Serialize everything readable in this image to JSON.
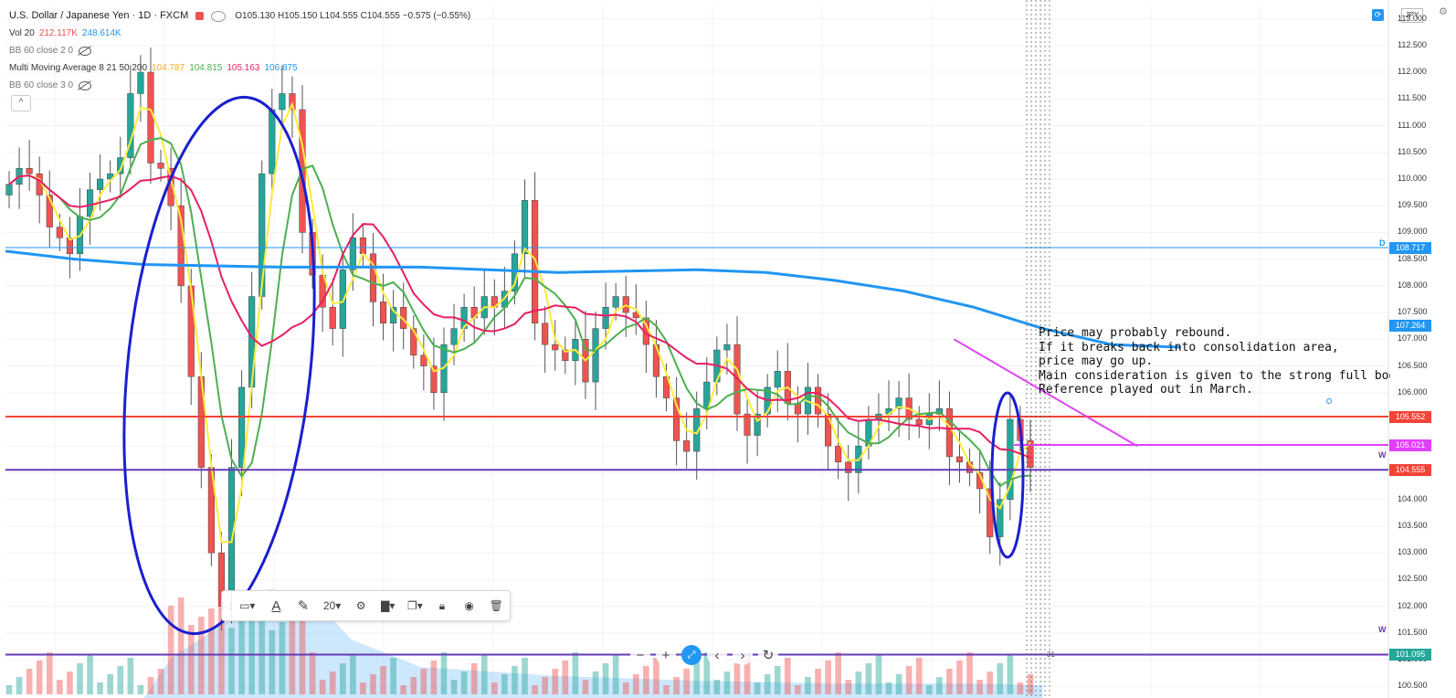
{
  "header": {
    "symbol": "U.S. Dollar / Japanese Yen · 1D · FXCM",
    "ohlc": "O105.130 H105.150 L104.555 C104.555 −0.575 (−0.55%)"
  },
  "indicators": {
    "vol_label": "Vol 20",
    "vol_v1": "212.117K",
    "vol_v2": "248.614K",
    "bb1": "BB 60 close 2 0",
    "mma_label": "Multi Moving Average 8 21 50 200",
    "mma_v1": "104.787",
    "mma_v2": "104.815",
    "mma_v3": "105.163",
    "mma_v4": "106.875",
    "bb2": "BB 60 close 3 0",
    "collapse": "^"
  },
  "toolbar": {
    "font_size": "20",
    "text_icon": "A"
  },
  "zoom": {
    "minus": "−",
    "plus": "+",
    "prev": "‹",
    "next": "›"
  },
  "axis": {
    "currency": "JPY",
    "ticks": [
      "113.000",
      "112.500",
      "112.000",
      "111.500",
      "111.000",
      "110.500",
      "110.000",
      "109.500",
      "109.000",
      "108.500",
      "108.000",
      "107.500",
      "107.000",
      "106.500",
      "106.000",
      "105.500",
      "105.000",
      "104.500",
      "104.000",
      "103.500",
      "103.000",
      "102.500",
      "102.000",
      "101.500",
      "101.000",
      "100.500"
    ],
    "tags": [
      {
        "label": "108.717",
        "value": 108.717,
        "color": "#2196f3"
      },
      {
        "label": "107.264",
        "value": 107.264,
        "color": "#2196f3"
      },
      {
        "label": "105.552",
        "value": 105.552,
        "color": "#f44336"
      },
      {
        "label": "105.021",
        "value": 105.021,
        "color": "#e040fb"
      },
      {
        "label": "104.555",
        "value": 104.555,
        "color": "#f44336"
      },
      {
        "label": "101.095",
        "value": 101.095,
        "color": "#26a69a"
      }
    ]
  },
  "annotation": {
    "lines": [
      "Price may probably rebound.",
      "If it breaks back into consolidation area,",
      "price may go up.",
      "Main consideration is given to the strong full body bull",
      "Reference played out in March."
    ]
  },
  "labels": {
    "w1": "W",
    "w2": "W",
    "d": "D"
  },
  "time_axis": {
    "label": "31"
  },
  "colors": {
    "up": "#26a69a",
    "down": "#ef5350",
    "ma8": "#ffeb3b",
    "ma21": "#4caf50",
    "ma50": "#e91e63",
    "ma200": "#2196f3"
  },
  "chart_data": {
    "type": "candlestick",
    "ylim": [
      100.5,
      113.2
    ],
    "horizontal_levels": [
      {
        "value": 108.717,
        "color": "#2196f3"
      },
      {
        "value": 105.552,
        "color": "#f44336"
      },
      {
        "value": 104.555,
        "color": "#673ab7"
      },
      {
        "value": 101.095,
        "color": "#673ab7"
      },
      {
        "value": 105.021,
        "color": "#e040fb"
      }
    ],
    "trendline": {
      "from": [
        0.6,
        107.0
      ],
      "to": [
        0.95,
        105.0
      ],
      "color": "#e040fb"
    },
    "ma200_path": [
      [
        0,
        108.65
      ],
      [
        0.05,
        108.5
      ],
      [
        0.1,
        108.4
      ],
      [
        0.2,
        108.35
      ],
      [
        0.3,
        108.35
      ],
      [
        0.4,
        108.25
      ],
      [
        0.5,
        108.3
      ],
      [
        0.55,
        108.25
      ],
      [
        0.6,
        108.1
      ],
      [
        0.65,
        107.9
      ],
      [
        0.7,
        107.6
      ],
      [
        0.75,
        107.2
      ],
      [
        0.8,
        106.9
      ],
      [
        0.85,
        106.85
      ]
    ],
    "candles_close": [
      109.9,
      110.2,
      110.1,
      109.7,
      109.1,
      108.9,
      108.6,
      109.3,
      109.8,
      110.0,
      110.1,
      110.4,
      111.6,
      112.0,
      110.3,
      110.2,
      109.5,
      108.0,
      106.3,
      104.6,
      103.0,
      102.0,
      104.6,
      106.1,
      107.8,
      110.1,
      111.3,
      111.6,
      111.3,
      109.0,
      108.2,
      107.6,
      107.2,
      108.3,
      108.9,
      108.6,
      107.7,
      107.3,
      107.6,
      107.2,
      106.7,
      106.5,
      106.0,
      106.9,
      107.2,
      107.6,
      107.4,
      107.8,
      107.6,
      107.9,
      108.6,
      109.6,
      107.3,
      106.9,
      106.8,
      106.6,
      107.0,
      106.2,
      107.2,
      107.6,
      107.8,
      107.5,
      107.4,
      106.9,
      106.3,
      105.9,
      105.1,
      104.9,
      105.7,
      106.2,
      106.8,
      106.9,
      105.6,
      105.2,
      105.6,
      106.1,
      106.4,
      105.8,
      105.6,
      106.1,
      105.6,
      105.0,
      104.7,
      104.5,
      105.0,
      105.5,
      105.6,
      105.7,
      105.9,
      105.5,
      105.4,
      105.6,
      105.7,
      104.8,
      104.7,
      104.5,
      104.2,
      103.3,
      104.0,
      105.5,
      105.1,
      104.6
    ]
  }
}
